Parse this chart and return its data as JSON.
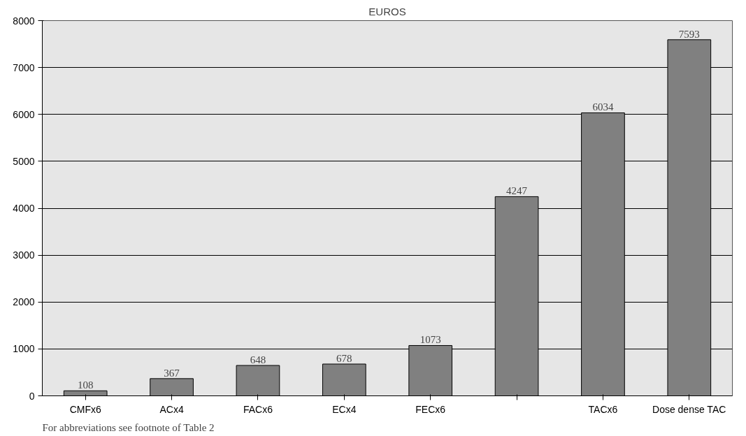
{
  "chart_data": {
    "type": "bar",
    "title": "EUROS",
    "categories": [
      "CMFx6",
      "ACx4",
      "FACx6",
      "ECx4",
      "FECx6",
      null,
      "TACx6",
      "Dose dense TAC"
    ],
    "values": [
      108,
      367,
      648,
      678,
      1073,
      4247,
      6034,
      7593
    ],
    "color": "#808080",
    "ylim": [
      0,
      8000
    ],
    "yticks": [
      0,
      1000,
      2000,
      3000,
      4000,
      5000,
      6000,
      7000,
      8000
    ],
    "grid": "y",
    "data_labels": true,
    "annotations": [
      "For abbreviations see footnote of Table 2"
    ]
  }
}
